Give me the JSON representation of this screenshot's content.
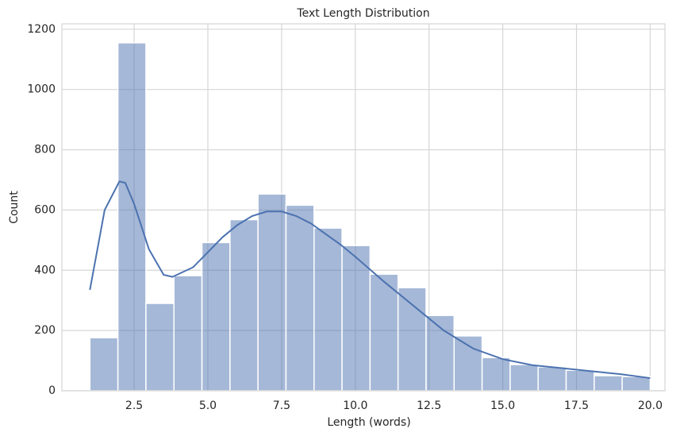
{
  "chart_data": {
    "type": "histogram",
    "title": "Text Length Distribution",
    "x_label": "Length (words)",
    "y_label": "Count",
    "bins": [
      1,
      1.95,
      2.9,
      3.85,
      4.8,
      5.75,
      6.7,
      7.65,
      8.6,
      9.55,
      10.5,
      11.45,
      12.4,
      13.35,
      14.3,
      15.25,
      16.2,
      17.15,
      18.1,
      19.05,
      20
    ],
    "values": [
      176,
      1155,
      290,
      382,
      492,
      568,
      653,
      616,
      540,
      482,
      387,
      342,
      250,
      182,
      110,
      87,
      79,
      68,
      50,
      47
    ],
    "color": "#4c72b0",
    "opacity": 0.5,
    "kde": {
      "x": [
        1,
        1.5,
        2,
        2.2,
        2.5,
        3,
        3.5,
        3.8,
        4.5,
        5,
        5.5,
        6,
        6.5,
        7,
        7.5,
        8,
        8.5,
        9,
        9.5,
        10,
        11,
        12,
        13,
        14,
        15,
        16,
        17,
        18,
        19,
        20
      ],
      "values": [
        335,
        600,
        695,
        690,
        620,
        470,
        385,
        378,
        410,
        460,
        510,
        550,
        580,
        595,
        595,
        580,
        555,
        520,
        485,
        445,
        360,
        280,
        200,
        140,
        105,
        85,
        75,
        65,
        55,
        42
      ],
      "color": "#4c72b0"
    },
    "xlim": [
      0.05,
      20.5
    ],
    "ylim": [
      0,
      1218
    ],
    "xticks": [
      2.5,
      {
        "value": 5,
        "label": "5.0"
      },
      7.5,
      {
        "value": 10,
        "label": "10.0"
      },
      12.5,
      {
        "value": 15,
        "label": "15.0"
      },
      17.5,
      {
        "value": 20,
        "label": "20.0"
      }
    ],
    "yticks": [
      0,
      200,
      400,
      600,
      800,
      1000,
      1200
    ],
    "grid": true
  }
}
